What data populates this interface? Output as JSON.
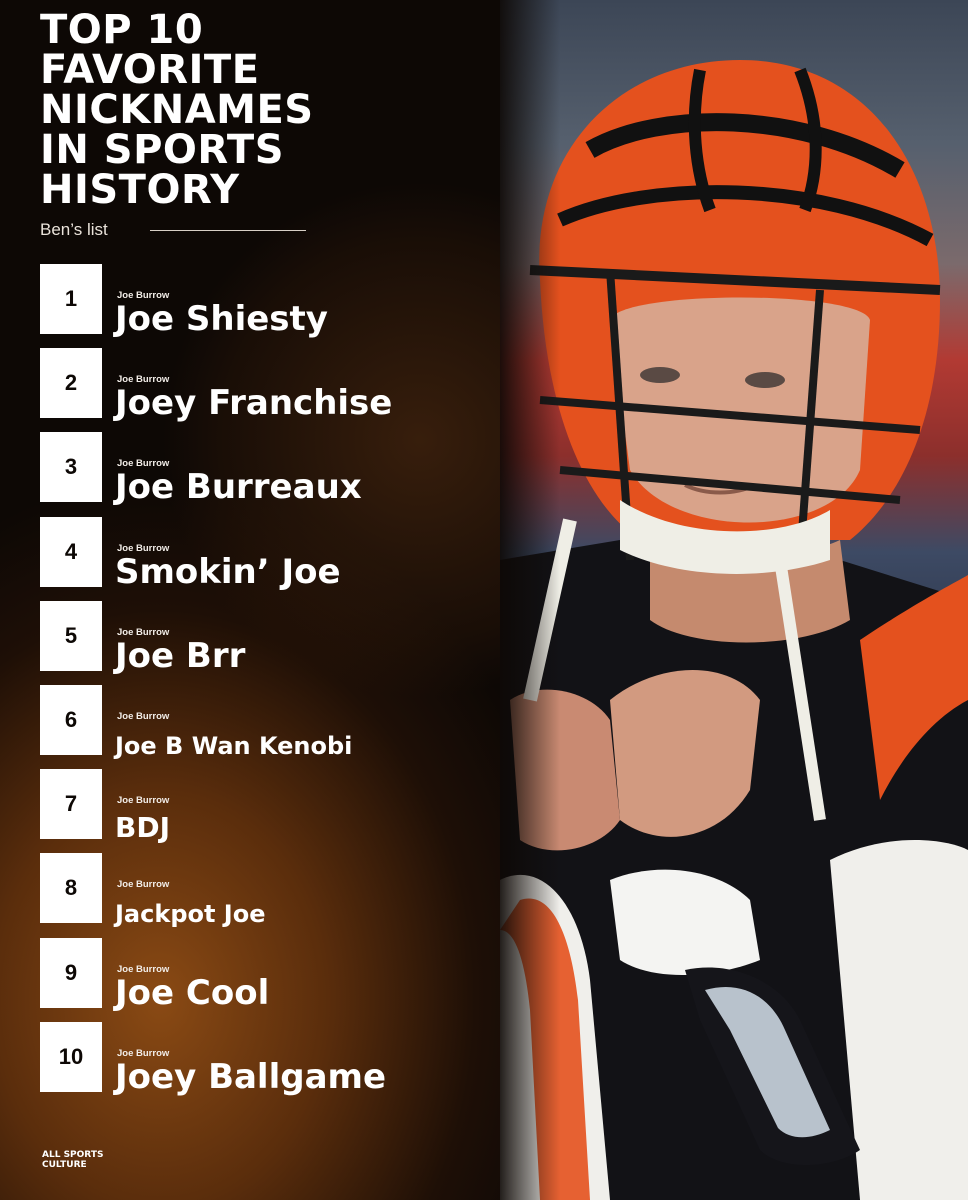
{
  "title_lines": [
    "TOP 10",
    "FAVORITE",
    "NICKNAMES",
    "IN SPORTS",
    "HISTORY"
  ],
  "subtitle": "Ben’s list",
  "items": [
    {
      "rank": "1",
      "player": "Joe Burrow",
      "nickname": "Joe Shiesty"
    },
    {
      "rank": "2",
      "player": "Joe Burrow",
      "nickname": "Joey Franchise"
    },
    {
      "rank": "3",
      "player": "Joe Burrow",
      "nickname": "Joe Burreaux"
    },
    {
      "rank": "4",
      "player": "Joe Burrow",
      "nickname": "Smokin’ Joe"
    },
    {
      "rank": "5",
      "player": "Joe Burrow",
      "nickname": "Joe Brr"
    },
    {
      "rank": "6",
      "player": "Joe Burrow",
      "nickname": "Joe B Wan Kenobi"
    },
    {
      "rank": "7",
      "player": "Joe Burrow",
      "nickname": "BDJ"
    },
    {
      "rank": "8",
      "player": "Joe Burrow",
      "nickname": "Jackpot Joe"
    },
    {
      "rank": "9",
      "player": "Joe Burrow",
      "nickname": "Joe Cool"
    },
    {
      "rank": "10",
      "player": "Joe Burrow",
      "nickname": "Joey Ballgame"
    }
  ],
  "brand_lines": [
    "ALL SPORTS",
    "CULTURE"
  ],
  "colors": {
    "background": "#0d0805",
    "accent_brown": "#8a4a14",
    "helmet_orange": "#e4511e",
    "text": "#ffffff"
  }
}
